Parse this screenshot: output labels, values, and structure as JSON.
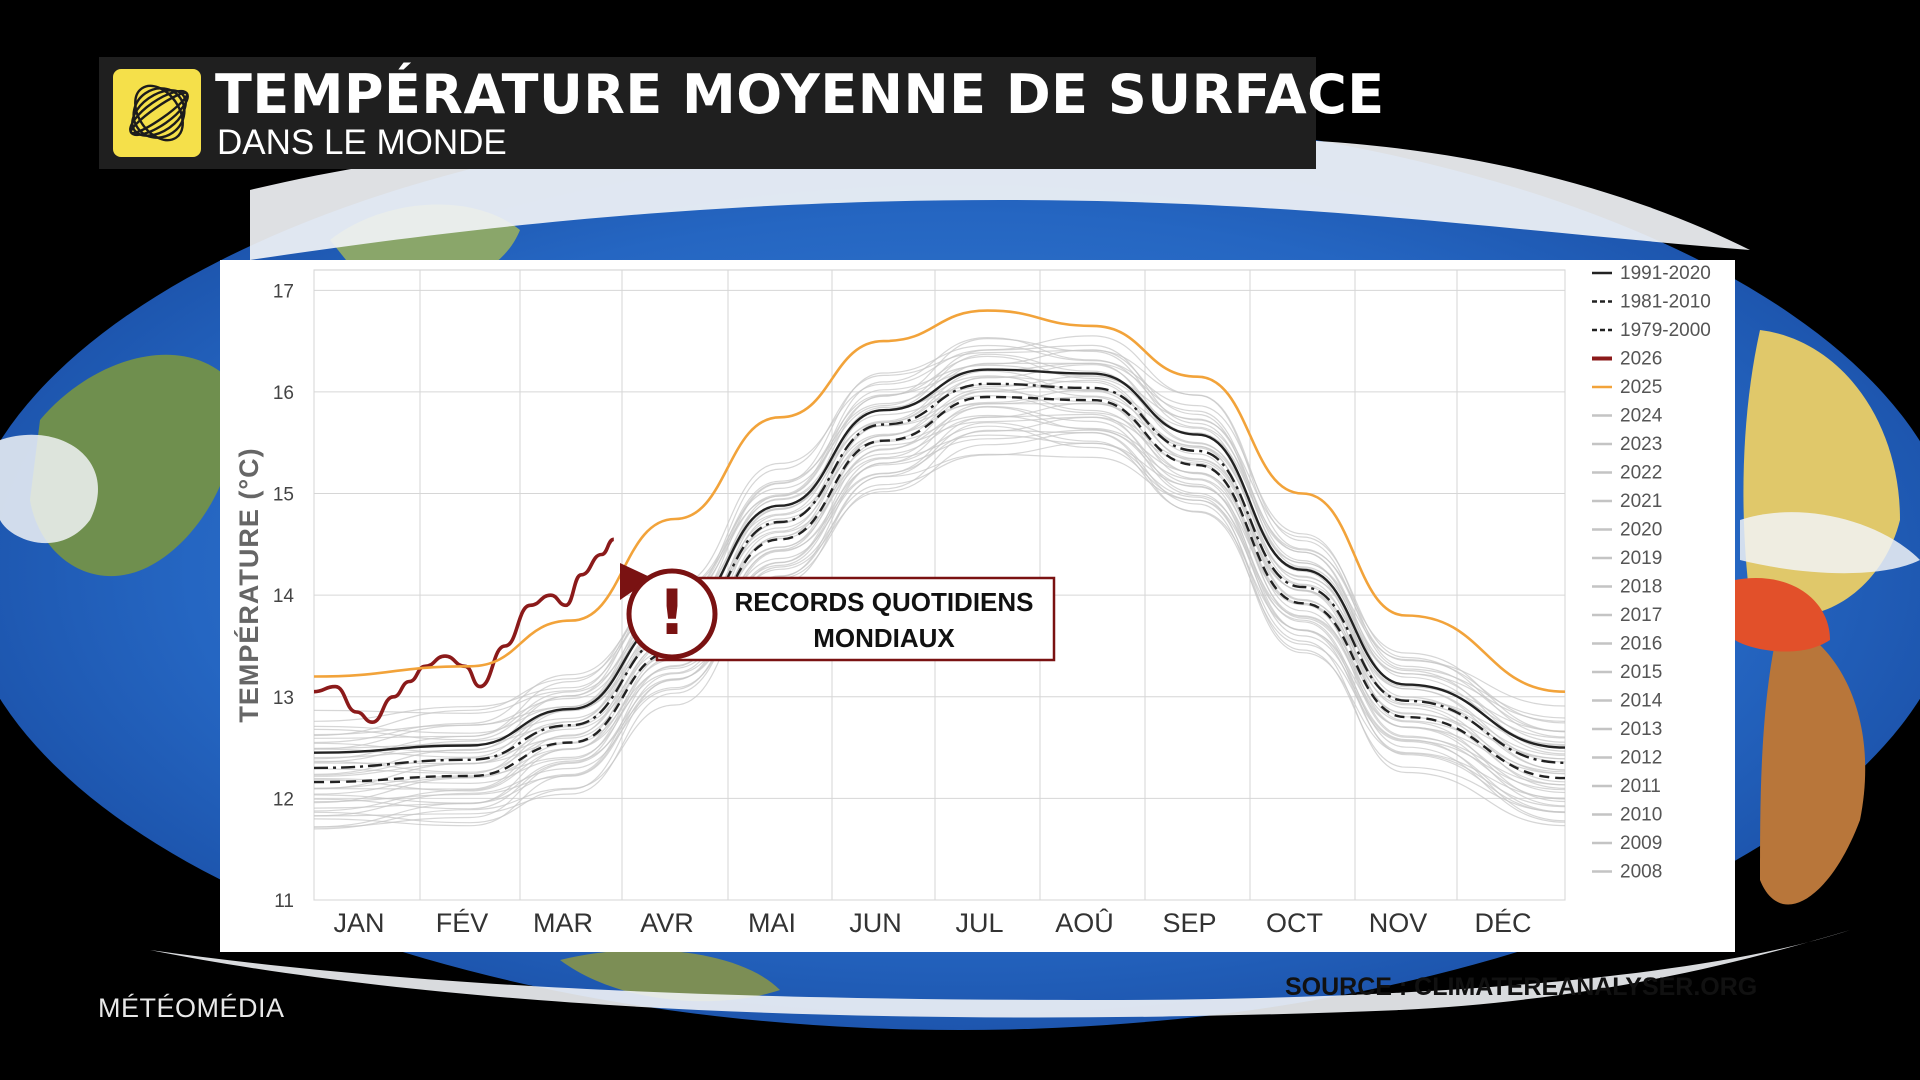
{
  "header": {
    "title": "TEMPÉRATURE MOYENNE DE SURFACE",
    "subtitle": "DANS LE MONDE",
    "logo_icon": "weather-network-swirl-icon"
  },
  "source": "SOURCE : CLIMATEREANALYSER.ORG",
  "brand": "MÉTÉOMÉDIA",
  "colors": {
    "accent_yellow": "#f5e04a",
    "record_red": "#8b1a1a",
    "year_2025": "#f2a33a",
    "history_gray": "#c4c4c4",
    "normals_black": "#222222"
  },
  "callout": {
    "line1": "RECORDS QUOTIDIENS",
    "line2": "MONDIAUX",
    "icon": "exclamation-icon"
  },
  "chart_data": {
    "type": "line",
    "title": "",
    "xlabel": "",
    "ylabel": "TEMPÉRATURE (°C)",
    "ylim": [
      11,
      17.2
    ],
    "yticks": [
      11,
      12,
      13,
      14,
      15,
      16,
      17
    ],
    "grid": true,
    "legend_position": "right",
    "month_labels": [
      "JAN",
      "FÉV",
      "MAR",
      "AVR",
      "MAI",
      "JUN",
      "JUL",
      "AOÛ",
      "SEP",
      "OCT",
      "NOV",
      "DÉC"
    ],
    "x_month_points": [
      0.5,
      1.5,
      2.5,
      3.5,
      4.5,
      5.5,
      6.5,
      7.5,
      8.5,
      9.5,
      10.5,
      11.5
    ],
    "series": [
      {
        "name": "1991-2020",
        "style": "solid",
        "color": "#222222",
        "values": [
          12.45,
          12.52,
          12.88,
          13.78,
          14.88,
          15.82,
          16.22,
          16.18,
          15.58,
          14.25,
          13.12,
          12.5
        ]
      },
      {
        "name": "1981-2010",
        "style": "dashdot",
        "color": "#222222",
        "values": [
          12.3,
          12.38,
          12.72,
          13.62,
          14.72,
          15.68,
          16.08,
          16.04,
          15.42,
          14.08,
          12.96,
          12.35
        ]
      },
      {
        "name": "1979-2000",
        "style": "dashed",
        "color": "#222222",
        "values": [
          12.16,
          12.22,
          12.55,
          13.45,
          14.55,
          15.52,
          15.95,
          15.92,
          15.28,
          13.92,
          12.8,
          12.2
        ]
      },
      {
        "name": "2026",
        "style": "solid",
        "color": "#8b1a1a",
        "x": [
          0,
          0.2,
          0.4,
          0.55,
          0.75,
          0.9,
          1.05,
          1.25,
          1.45,
          1.6,
          1.85,
          2.1,
          2.3,
          2.45,
          2.6,
          2.8,
          2.92
        ],
        "values": [
          13.05,
          13.1,
          12.85,
          12.75,
          13.0,
          13.15,
          13.3,
          13.4,
          13.3,
          13.1,
          13.5,
          13.9,
          14.0,
          13.9,
          14.2,
          14.4,
          14.55
        ]
      },
      {
        "name": "2025",
        "style": "solid",
        "color": "#f2a33a",
        "values": [
          13.2,
          13.3,
          13.75,
          14.75,
          15.75,
          16.5,
          16.8,
          16.65,
          16.15,
          15.0,
          13.8,
          13.05
        ]
      },
      {
        "name": "2024",
        "style": "solid",
        "color": "#c4c4c4",
        "values": []
      },
      {
        "name": "2023",
        "style": "solid",
        "color": "#c4c4c4",
        "values": []
      },
      {
        "name": "2022",
        "style": "solid",
        "color": "#c4c4c4",
        "values": []
      },
      {
        "name": "2021",
        "style": "solid",
        "color": "#c4c4c4",
        "values": []
      },
      {
        "name": "2020",
        "style": "solid",
        "color": "#c4c4c4",
        "values": []
      },
      {
        "name": "2019",
        "style": "solid",
        "color": "#c4c4c4",
        "values": []
      },
      {
        "name": "2018",
        "style": "solid",
        "color": "#c4c4c4",
        "values": []
      },
      {
        "name": "2017",
        "style": "solid",
        "color": "#c4c4c4",
        "values": []
      },
      {
        "name": "2016",
        "style": "solid",
        "color": "#c4c4c4",
        "values": []
      },
      {
        "name": "2015",
        "style": "solid",
        "color": "#c4c4c4",
        "values": []
      },
      {
        "name": "2014",
        "style": "solid",
        "color": "#c4c4c4",
        "values": []
      },
      {
        "name": "2013",
        "style": "solid",
        "color": "#c4c4c4",
        "values": []
      },
      {
        "name": "2012",
        "style": "solid",
        "color": "#c4c4c4",
        "values": []
      },
      {
        "name": "2011",
        "style": "solid",
        "color": "#c4c4c4",
        "values": []
      },
      {
        "name": "2010",
        "style": "solid",
        "color": "#c4c4c4",
        "values": []
      },
      {
        "name": "2009",
        "style": "solid",
        "color": "#c4c4c4",
        "values": []
      },
      {
        "name": "2008",
        "style": "solid",
        "color": "#c4c4c4",
        "values": []
      }
    ]
  }
}
